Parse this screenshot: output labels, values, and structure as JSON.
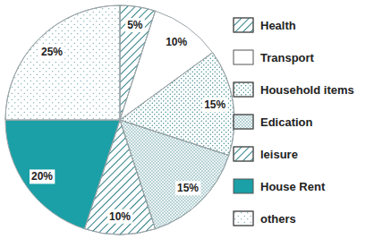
{
  "chart_data": {
    "type": "pie",
    "categories": [
      "Health",
      "Transport",
      "Household items",
      "Edication",
      "leisure",
      "House Rent",
      "others"
    ],
    "values": [
      5,
      10,
      15,
      15,
      10,
      20,
      25
    ],
    "value_labels": [
      "5%",
      "10%",
      "15%",
      "15%",
      "10%",
      "20%",
      "25%"
    ],
    "colors": [
      "#ffffff",
      "#ffffff",
      "#ffffff",
      "#ffffff",
      "#ffffff",
      "#1aa0a6",
      "#ffffff"
    ],
    "data_labels": true,
    "legend": "right"
  }
}
